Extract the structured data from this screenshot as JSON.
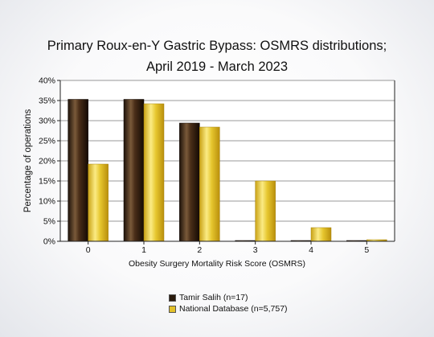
{
  "chart_data": {
    "type": "bar",
    "title_line1": "Primary Roux-en-Y Gastric Bypass: OSMRS distributions;",
    "title_line2": "April 2019 - March 2023",
    "xlabel": "Obesity Surgery Mortality Risk Score (OSMRS)",
    "ylabel": "Percentage of operations",
    "categories": [
      "0",
      "1",
      "2",
      "3",
      "4",
      "5"
    ],
    "ylim": [
      0,
      40
    ],
    "yticks": [
      0,
      5,
      10,
      15,
      20,
      25,
      30,
      35,
      40
    ],
    "ytick_suffix": "%",
    "grid": true,
    "legend_position": "bottom",
    "series": [
      {
        "name": "Tamir Salih (n=17)",
        "values": [
          35.3,
          35.3,
          29.4,
          0.2,
          0.2,
          0.2
        ],
        "color": "#3a2412"
      },
      {
        "name": "National Database (n=5,757)",
        "values": [
          19.2,
          34.2,
          28.4,
          15.0,
          3.4,
          0.4
        ],
        "color": "#e3c12a"
      }
    ]
  }
}
